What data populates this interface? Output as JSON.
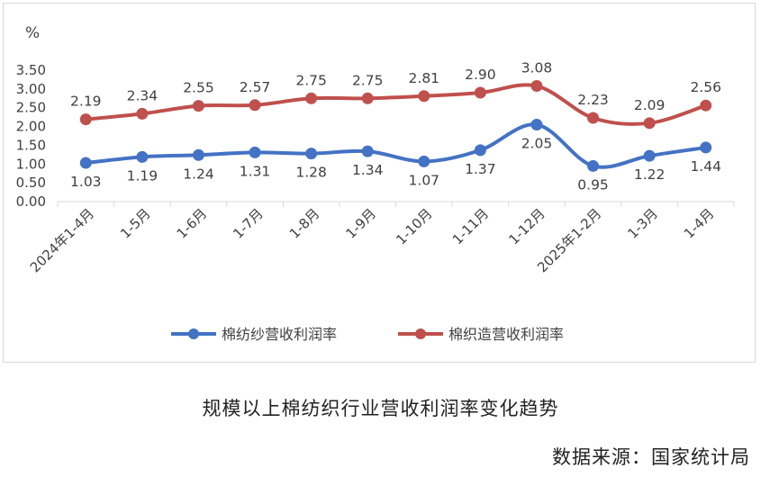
{
  "chart_data": {
    "type": "line",
    "unit_label": "%",
    "categories": [
      "2024年1-4月",
      "1-5月",
      "1-6月",
      "1-7月",
      "1-8月",
      "1-9月",
      "1-10月",
      "1-11月",
      "1-12月",
      "2025年1-2月",
      "1-3月",
      "1-4月"
    ],
    "series": [
      {
        "name": "棉纺纱营收利润率",
        "color": "#4472c4",
        "values": [
          1.03,
          1.19,
          1.24,
          1.31,
          1.28,
          1.34,
          1.07,
          1.37,
          2.05,
          0.95,
          1.22,
          1.44
        ],
        "labels": [
          "1.03",
          "1.19",
          "1.24",
          "1.31",
          "1.28",
          "1.34",
          "1.07",
          "1.37",
          "2.05",
          "0.95",
          "1.22",
          "1.44"
        ],
        "label_position": "below"
      },
      {
        "name": "棉织造营收利润率",
        "color": "#c0504d",
        "values": [
          2.19,
          2.34,
          2.55,
          2.57,
          2.75,
          2.75,
          2.81,
          2.9,
          3.08,
          2.23,
          2.09,
          2.56
        ],
        "labels": [
          "2.19",
          "2.34",
          "2.55",
          "2.57",
          "2.75",
          "2.75",
          "2.81",
          "2.90",
          "3.08",
          "2.23",
          "2.09",
          "2.56"
        ],
        "label_position": "above"
      }
    ],
    "ylim": [
      0,
      3.5
    ],
    "yticks": [
      "0.00",
      "0.50",
      "1.00",
      "1.50",
      "2.00",
      "2.50",
      "3.00",
      "3.50"
    ],
    "grid": false,
    "legend_position": "bottom",
    "smooth": true
  },
  "caption": "规模以上棉纺织行业营收利润率变化趋势",
  "source": "数据来源：国家统计局"
}
